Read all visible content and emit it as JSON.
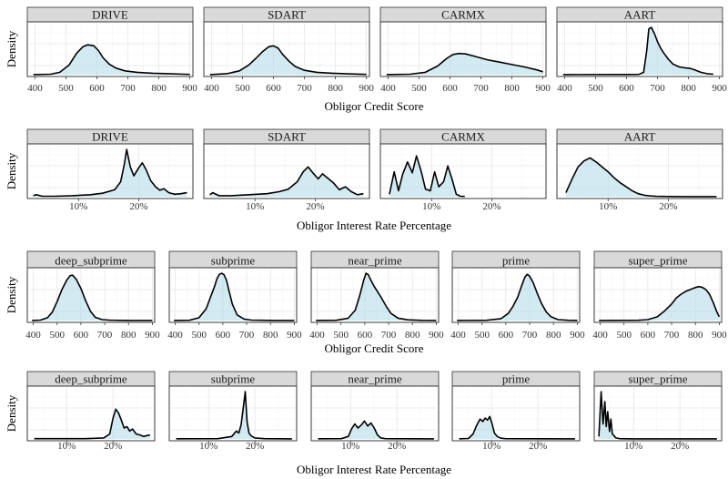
{
  "colors": {
    "fill": "#add8e6",
    "line": "#000000",
    "strip": "#d9d9d9",
    "grid": "#ebebeb"
  },
  "chart_data": [
    {
      "type": "area",
      "title": "",
      "xlabel": "Obligor Credit Score",
      "ylabel": "Density",
      "xlim": [
        375,
        910
      ],
      "xticks": [
        400,
        500,
        600,
        700,
        800,
        900
      ],
      "xtick_labels": [
        "400",
        "500",
        "600",
        "700",
        "800",
        "900"
      ],
      "y_ticks_shown": false,
      "grid": true,
      "facets": [
        {
          "label": "DRIVE",
          "x": [
            395,
            450,
            480,
            510,
            535,
            555,
            570,
            590,
            605,
            620,
            640,
            660,
            690,
            730,
            780,
            830,
            880,
            900
          ],
          "y": [
            0.002,
            0.01,
            0.05,
            0.2,
            0.45,
            0.58,
            0.62,
            0.6,
            0.5,
            0.35,
            0.22,
            0.14,
            0.08,
            0.05,
            0.03,
            0.02,
            0.01,
            0.005
          ]
        },
        {
          "label": "SDART",
          "x": [
            395,
            450,
            490,
            520,
            545,
            565,
            585,
            600,
            615,
            630,
            650,
            670,
            700,
            740,
            790,
            850,
            900
          ],
          "y": [
            0.002,
            0.02,
            0.08,
            0.2,
            0.35,
            0.48,
            0.58,
            0.6,
            0.55,
            0.42,
            0.28,
            0.17,
            0.09,
            0.05,
            0.03,
            0.015,
            0.005
          ]
        },
        {
          "label": "CARMX",
          "x": [
            395,
            470,
            520,
            560,
            590,
            610,
            630,
            650,
            680,
            720,
            760,
            800,
            840,
            880,
            900
          ],
          "y": [
            0.002,
            0.01,
            0.05,
            0.18,
            0.34,
            0.42,
            0.44,
            0.43,
            0.38,
            0.31,
            0.26,
            0.21,
            0.16,
            0.1,
            0.06
          ]
        },
        {
          "label": "AART",
          "x": [
            395,
            600,
            640,
            655,
            665,
            672,
            680,
            690,
            700,
            710,
            720,
            735,
            750,
            770,
            790,
            805,
            820,
            840,
            860,
            880
          ],
          "y": [
            0.002,
            0.003,
            0.005,
            0.05,
            0.5,
            0.95,
            0.98,
            0.85,
            0.68,
            0.55,
            0.45,
            0.32,
            0.22,
            0.16,
            0.14,
            0.13,
            0.1,
            0.05,
            0.02,
            0.01
          ]
        }
      ]
    },
    {
      "type": "area",
      "title": "",
      "xlabel": "Obligor Interest Rate Percentage",
      "ylabel": "Density",
      "xlim": [
        1.5,
        29
      ],
      "xticks": [
        10,
        20
      ],
      "xtick_labels": [
        "10%",
        "20%"
      ],
      "y_ticks_shown": false,
      "grid": true,
      "facets": [
        {
          "label": "DRIVE",
          "x": [
            2.5,
            3,
            4,
            6,
            9,
            12,
            14,
            16,
            17,
            17.6,
            18,
            18.6,
            19.2,
            20,
            20.6,
            21.2,
            22,
            22.8,
            23.5,
            24.2,
            25,
            26,
            27,
            28
          ],
          "y": [
            0.02,
            0.04,
            0.01,
            0.01,
            0.02,
            0.04,
            0.07,
            0.14,
            0.3,
            0.65,
            0.95,
            0.6,
            0.42,
            0.58,
            0.68,
            0.55,
            0.32,
            0.2,
            0.13,
            0.16,
            0.08,
            0.05,
            0.06,
            0.08
          ]
        },
        {
          "label": "SDART",
          "x": [
            2.5,
            3,
            4,
            6,
            9,
            12,
            14,
            15.5,
            17,
            18,
            18.8,
            19.6,
            20.5,
            21.2,
            22,
            23,
            24,
            25,
            26,
            27,
            28
          ],
          "y": [
            0.04,
            0.08,
            0.02,
            0.02,
            0.04,
            0.06,
            0.1,
            0.15,
            0.3,
            0.5,
            0.6,
            0.48,
            0.36,
            0.46,
            0.38,
            0.28,
            0.14,
            0.2,
            0.1,
            0.04,
            0.06
          ]
        },
        {
          "label": "CARMX",
          "x": [
            3,
            3.8,
            4.5,
            5.2,
            6,
            6.8,
            7.5,
            8.3,
            9,
            9.8,
            10.5,
            11.2,
            12,
            12.7,
            13.4,
            14.1,
            14.8,
            15.5
          ],
          "y": [
            0.05,
            0.5,
            0.12,
            0.45,
            0.7,
            0.48,
            0.82,
            0.5,
            0.15,
            0.12,
            0.5,
            0.2,
            0.3,
            0.62,
            0.35,
            0.05,
            0.01,
            0.005
          ]
        },
        {
          "label": "AART",
          "x": [
            3,
            4,
            5,
            6,
            7,
            8,
            9,
            10,
            11,
            12,
            13,
            14,
            15,
            16,
            17,
            18,
            20,
            23,
            28
          ],
          "y": [
            0.08,
            0.35,
            0.6,
            0.72,
            0.78,
            0.7,
            0.6,
            0.5,
            0.38,
            0.28,
            0.2,
            0.12,
            0.06,
            0.03,
            0.015,
            0.008,
            0.004,
            0.002,
            0.001
          ]
        }
      ]
    },
    {
      "type": "area",
      "title": "",
      "xlabel": "Obligor Credit Score",
      "ylabel": "Density",
      "xlim": [
        375,
        910
      ],
      "xticks": [
        400,
        500,
        600,
        700,
        800,
        900
      ],
      "xtick_labels": [
        "400",
        "500",
        "600",
        "700",
        "800",
        "900"
      ],
      "y_ticks_shown": false,
      "grid": true,
      "facets": [
        {
          "label": "deep_subprime",
          "x": [
            395,
            430,
            460,
            480,
            500,
            520,
            540,
            555,
            565,
            580,
            600,
            620,
            640,
            660,
            690,
            720,
            760,
            800,
            860,
            900
          ],
          "y": [
            0.002,
            0.01,
            0.06,
            0.18,
            0.4,
            0.65,
            0.85,
            0.95,
            0.96,
            0.88,
            0.68,
            0.42,
            0.2,
            0.07,
            0.02,
            0.008,
            0.004,
            0.002,
            0.001,
            0.001
          ]
        },
        {
          "label": "subprime",
          "x": [
            395,
            460,
            500,
            530,
            550,
            565,
            575,
            585,
            595,
            605,
            615,
            625,
            640,
            660,
            690,
            720,
            760,
            820,
            900
          ],
          "y": [
            0.002,
            0.005,
            0.06,
            0.25,
            0.52,
            0.72,
            0.88,
            0.98,
            1.0,
            0.97,
            0.86,
            0.65,
            0.35,
            0.12,
            0.03,
            0.01,
            0.005,
            0.002,
            0.001
          ]
        },
        {
          "label": "near_prime",
          "x": [
            395,
            480,
            530,
            560,
            580,
            595,
            605,
            615,
            625,
            640,
            655,
            670,
            690,
            710,
            740,
            780,
            840,
            900
          ],
          "y": [
            0.002,
            0.005,
            0.05,
            0.22,
            0.55,
            0.85,
            1.0,
            0.97,
            0.86,
            0.72,
            0.6,
            0.48,
            0.3,
            0.15,
            0.05,
            0.015,
            0.004,
            0.001
          ]
        },
        {
          "label": "prime",
          "x": [
            395,
            520,
            580,
            610,
            630,
            650,
            665,
            680,
            690,
            700,
            715,
            730,
            750,
            770,
            790,
            820,
            860,
            900
          ],
          "y": [
            0.002,
            0.005,
            0.04,
            0.15,
            0.3,
            0.5,
            0.72,
            0.92,
            0.98,
            0.94,
            0.8,
            0.6,
            0.36,
            0.18,
            0.08,
            0.02,
            0.005,
            0.002
          ]
        },
        {
          "label": "super_prime",
          "x": [
            395,
            560,
            600,
            640,
            670,
            700,
            720,
            740,
            760,
            780,
            800,
            815,
            830,
            845,
            860,
            875,
            890,
            900
          ],
          "y": [
            0.001,
            0.005,
            0.02,
            0.08,
            0.2,
            0.35,
            0.48,
            0.56,
            0.62,
            0.66,
            0.7,
            0.72,
            0.7,
            0.65,
            0.55,
            0.38,
            0.18,
            0.08
          ]
        }
      ]
    },
    {
      "type": "area",
      "title": "",
      "xlabel": "Obligor Interest Rate Percentage",
      "ylabel": "Density",
      "xlim": [
        1.5,
        29
      ],
      "xticks": [
        10,
        20
      ],
      "xtick_labels": [
        "10%",
        "20%"
      ],
      "y_ticks_shown": false,
      "grid": true,
      "facets": [
        {
          "label": "deep_subprime",
          "x": [
            3,
            14,
            18,
            19.3,
            20,
            20.6,
            21.2,
            21.8,
            22.4,
            23,
            23.6,
            24.2,
            25,
            25.8,
            26.6,
            27.4,
            28
          ],
          "y": [
            0.005,
            0.005,
            0.02,
            0.1,
            0.42,
            0.6,
            0.52,
            0.38,
            0.22,
            0.25,
            0.16,
            0.2,
            0.1,
            0.08,
            0.05,
            0.07,
            0.08
          ]
        },
        {
          "label": "subprime",
          "x": [
            3,
            12,
            15,
            16,
            16.5,
            17,
            17.5,
            17.9,
            18.3,
            18.7,
            19.2,
            20,
            22,
            28
          ],
          "y": [
            0.003,
            0.005,
            0.05,
            0.16,
            0.12,
            0.28,
            0.65,
            0.95,
            0.35,
            0.12,
            0.06,
            0.02,
            0.005,
            0.002
          ]
        },
        {
          "label": "near_prime",
          "x": [
            3,
            8,
            9.5,
            10.2,
            10.9,
            11.6,
            12.3,
            13,
            13.7,
            14.4,
            15.1,
            15.8,
            16.5,
            17.5,
            28
          ],
          "y": [
            0.003,
            0.005,
            0.05,
            0.2,
            0.3,
            0.22,
            0.28,
            0.36,
            0.26,
            0.32,
            0.22,
            0.08,
            0.02,
            0.005,
            0.002
          ]
        },
        {
          "label": "prime",
          "x": [
            3,
            5,
            6,
            6.8,
            7.5,
            8.1,
            8.6,
            9.1,
            9.6,
            10.1,
            10.6,
            11.2,
            12,
            13,
            28
          ],
          "y": [
            0.003,
            0.01,
            0.1,
            0.28,
            0.4,
            0.35,
            0.42,
            0.38,
            0.45,
            0.3,
            0.12,
            0.05,
            0.015,
            0.005,
            0.002
          ]
        },
        {
          "label": "super_prime",
          "x": [
            2.5,
            3,
            3.4,
            3.8,
            4.1,
            4.4,
            4.8,
            5.1,
            5.4,
            5.8,
            6.2,
            7,
            10,
            28
          ],
          "y": [
            0.05,
            0.95,
            0.3,
            0.75,
            0.25,
            0.55,
            0.15,
            0.4,
            0.1,
            0.06,
            0.02,
            0.005,
            0.002,
            0.001
          ]
        }
      ]
    }
  ]
}
